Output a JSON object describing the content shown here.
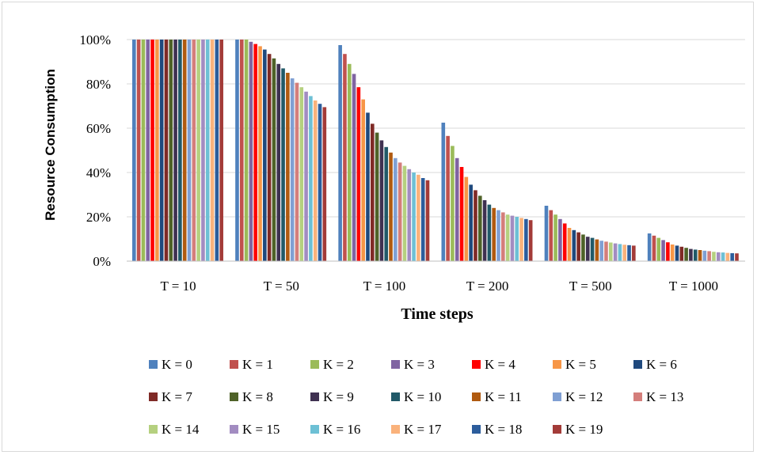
{
  "chart_data": {
    "type": "bar",
    "title": "",
    "xlabel": "Time steps",
    "ylabel": "Resource Consumption",
    "ylim": [
      0,
      100
    ],
    "y_ticks": [
      "0%",
      "20%",
      "40%",
      "60%",
      "80%",
      "100%"
    ],
    "y_tick_values": [
      0,
      20,
      40,
      60,
      80,
      100
    ],
    "grid": true,
    "legend_position": "bottom",
    "categories": [
      "T = 10",
      "T = 50",
      "T = 100",
      "T = 200",
      "T = 500",
      "T = 1000"
    ],
    "series": [
      {
        "name": "K = 0",
        "color": "#4F81BD",
        "values": [
          100,
          100,
          97.5,
          62.5,
          25,
          12.5
        ]
      },
      {
        "name": "K = 1",
        "color": "#C0504D",
        "values": [
          100,
          100,
          93.5,
          56.5,
          23,
          11.5
        ]
      },
      {
        "name": "K = 2",
        "color": "#9BBB59",
        "values": [
          100,
          100,
          89,
          52,
          21,
          10.5
        ]
      },
      {
        "name": "K = 3",
        "color": "#8064A2",
        "values": [
          100,
          99,
          84.5,
          46.5,
          19,
          9.5
        ]
      },
      {
        "name": "K = 4",
        "color": "#FF0000",
        "values": [
          100,
          98,
          78.5,
          42.5,
          17,
          8.5
        ]
      },
      {
        "name": "K = 5",
        "color": "#F79646",
        "values": [
          100,
          97,
          73,
          38,
          15,
          7.5
        ]
      },
      {
        "name": "K = 6",
        "color": "#1F497D",
        "values": [
          100,
          95.5,
          67,
          34.5,
          14,
          7
        ]
      },
      {
        "name": "K = 7",
        "color": "#7F2A26",
        "values": [
          100,
          93.5,
          62,
          32,
          13,
          6.5
        ]
      },
      {
        "name": "K = 8",
        "color": "#4F6228",
        "values": [
          100,
          91.5,
          58,
          29.5,
          12,
          6
        ]
      },
      {
        "name": "K = 9",
        "color": "#3F3151",
        "values": [
          100,
          89,
          54.5,
          27.5,
          11,
          5.5
        ]
      },
      {
        "name": "K = 10",
        "color": "#215968",
        "values": [
          100,
          87,
          51.5,
          25.5,
          10.5,
          5.2
        ]
      },
      {
        "name": "K = 11",
        "color": "#B05A10",
        "values": [
          100,
          85,
          49,
          24,
          9.8,
          5
        ]
      },
      {
        "name": "K = 12",
        "color": "#7F9FD3",
        "values": [
          100,
          82.5,
          46.5,
          23,
          9.2,
          4.7
        ]
      },
      {
        "name": "K = 13",
        "color": "#D47E7B",
        "values": [
          100,
          80.5,
          44.5,
          22,
          8.8,
          4.5
        ]
      },
      {
        "name": "K = 14",
        "color": "#B5D07F",
        "values": [
          100,
          78.5,
          43,
          21,
          8.4,
          4.2
        ]
      },
      {
        "name": "K = 15",
        "color": "#A28CC1",
        "values": [
          100,
          76.5,
          41.5,
          20.5,
          8,
          4
        ]
      },
      {
        "name": "K = 16",
        "color": "#6DC0D5",
        "values": [
          100,
          74.5,
          40,
          20,
          7.7,
          3.9
        ]
      },
      {
        "name": "K = 17",
        "color": "#FAB27B",
        "values": [
          100,
          72.5,
          39,
          19.5,
          7.4,
          3.7
        ]
      },
      {
        "name": "K = 18",
        "color": "#2C5D9C",
        "values": [
          100,
          71,
          37.5,
          19,
          7.2,
          3.6
        ]
      },
      {
        "name": "K = 19",
        "color": "#A33B38",
        "values": [
          100,
          69.5,
          36.5,
          18.5,
          7,
          3.5
        ]
      }
    ]
  }
}
